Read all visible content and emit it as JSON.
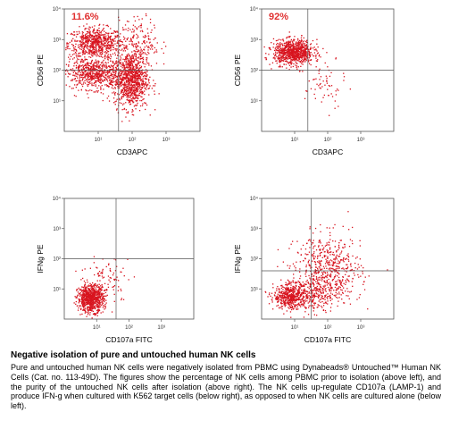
{
  "colors": {
    "dots": "#d8141f",
    "axis": "#555555",
    "label": "#e03030",
    "text": "#000000"
  },
  "tick_labels": [
    "10⁰",
    "10¹",
    "10²",
    "10³",
    "10⁴"
  ],
  "chart_data": [
    {
      "type": "scatter",
      "xlabel": "CD3APC",
      "ylabel": "CD56 PE",
      "percent_label": "11.6%",
      "xlim": [
        0,
        4
      ],
      "ylim": [
        0,
        4
      ],
      "log_scale": true,
      "quadrant_gate": {
        "x": 1.6,
        "y": 2.0
      },
      "clusters": [
        {
          "cx": 0.9,
          "cy": 2.9,
          "sx": 0.4,
          "sy": 0.25,
          "n": 700
        },
        {
          "cx": 0.9,
          "cy": 1.9,
          "sx": 0.45,
          "sy": 0.25,
          "n": 700
        },
        {
          "cx": 1.95,
          "cy": 1.7,
          "sx": 0.25,
          "sy": 0.45,
          "n": 900
        },
        {
          "cx": 2.2,
          "cy": 2.9,
          "sx": 0.3,
          "sy": 0.4,
          "n": 200
        }
      ]
    },
    {
      "type": "scatter",
      "xlabel": "CD3APC",
      "ylabel": "CD56 PE",
      "percent_label": "92%",
      "xlim": [
        0,
        4
      ],
      "ylim": [
        0,
        4
      ],
      "log_scale": true,
      "quadrant_gate": {
        "x": 1.4,
        "y": 2.0
      },
      "clusters": [
        {
          "cx": 0.95,
          "cy": 2.6,
          "sx": 0.3,
          "sy": 0.2,
          "n": 900
        },
        {
          "cx": 1.9,
          "cy": 1.5,
          "sx": 0.3,
          "sy": 0.4,
          "n": 60
        }
      ]
    },
    {
      "type": "scatter",
      "xlabel": "CD107a FITC",
      "ylabel": "IFNg PE",
      "percent_label": "",
      "xlim": [
        0,
        4
      ],
      "ylim": [
        0,
        4
      ],
      "log_scale": true,
      "quadrant_gate": {
        "x": 1.6,
        "y": 2.0
      },
      "clusters": [
        {
          "cx": 0.8,
          "cy": 0.7,
          "sx": 0.2,
          "sy": 0.22,
          "n": 800
        },
        {
          "cx": 1.3,
          "cy": 1.3,
          "sx": 0.4,
          "sy": 0.4,
          "n": 100
        }
      ]
    },
    {
      "type": "scatter",
      "xlabel": "CD107a FITC",
      "ylabel": "IFNg PE",
      "percent_label": "",
      "xlim": [
        0,
        4
      ],
      "ylim": [
        0,
        4
      ],
      "log_scale": true,
      "quadrant_gate": {
        "x": 1.5,
        "y": 1.6
      },
      "clusters": [
        {
          "cx": 0.85,
          "cy": 0.75,
          "sx": 0.25,
          "sy": 0.2,
          "n": 450
        },
        {
          "cx": 2.0,
          "cy": 1.6,
          "sx": 0.5,
          "sy": 0.6,
          "n": 600
        },
        {
          "cx": 1.4,
          "cy": 0.9,
          "sx": 0.4,
          "sy": 0.3,
          "n": 250
        }
      ]
    }
  ],
  "caption": {
    "title": "Negative isolation of pure and untouched human NK cells",
    "body": "Pure and untouched human NK cells were negatively isolated from PBMC using Dynabeads® Untouched™ Human NK Cells (Cat. no. 113-49D). The figures show the percentage of NK cells among PBMC prior to isolation (above left), and the purity of the untouched NK cells after isolation (above right). The NK cells up-regulate CD107a (LAMP-1) and produce IFN-g when cultured with K562 target cells (below right), as opposed to when NK cells are cultured alone (below left)."
  }
}
